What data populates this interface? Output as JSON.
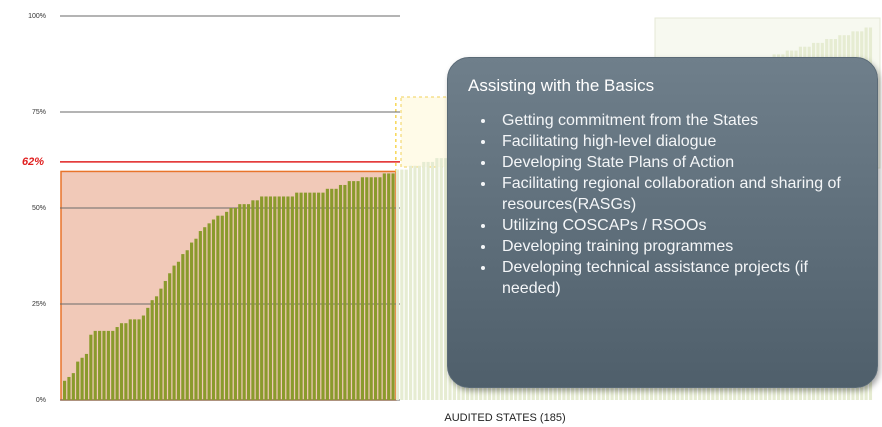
{
  "chart_data": {
    "type": "bar",
    "x_label": "AUDITED STATES (185)",
    "ylim": [
      0,
      100
    ],
    "yticks": [
      {
        "value": 0,
        "label": "0%"
      },
      {
        "value": 25,
        "label": "25%"
      },
      {
        "value": 50,
        "label": "50%"
      },
      {
        "value": 75,
        "label": "75%"
      },
      {
        "value": 100,
        "label": "100%"
      }
    ],
    "grid": true,
    "reference_line": {
      "value": 62,
      "label": "62%",
      "color": "#e02020"
    },
    "series": [
      {
        "color": "#8a9a2c",
        "values": [
          5,
          6,
          7,
          10,
          11,
          12,
          17,
          18,
          18,
          18,
          18,
          18,
          19,
          20,
          20,
          21,
          21,
          21,
          22,
          24,
          26,
          27,
          29,
          31,
          33,
          35,
          36,
          38,
          39,
          41,
          42,
          44,
          45,
          46,
          47,
          48,
          48,
          49,
          50,
          50,
          51,
          51,
          51,
          52,
          52,
          53,
          53,
          53,
          53,
          53,
          53,
          53,
          53,
          54,
          54,
          54,
          54,
          54,
          54,
          54,
          55,
          55,
          55,
          56,
          56,
          57,
          57,
          57,
          58,
          58,
          58,
          58,
          58,
          59,
          59,
          59
        ]
      },
      {
        "color": "#e6ecd2",
        "values": [
          60,
          60,
          60,
          61,
          61,
          61,
          62,
          62,
          62,
          63,
          63,
          63,
          64,
          64,
          64,
          65,
          65,
          65,
          66,
          66,
          66,
          67,
          67,
          67,
          68,
          68,
          68,
          69,
          69,
          69,
          70,
          70,
          70,
          71,
          71,
          71,
          72,
          72,
          72,
          73,
          73,
          73,
          74,
          74,
          74,
          75,
          75,
          75,
          76,
          76,
          76,
          77,
          77,
          77,
          78,
          78,
          78,
          80,
          80,
          81,
          81,
          81,
          82,
          82,
          82,
          83,
          83,
          83,
          84,
          84,
          84,
          85,
          85,
          85,
          86,
          86,
          86,
          87,
          87,
          87,
          88,
          88,
          88,
          89,
          89,
          89,
          90,
          90,
          90,
          91,
          91,
          91,
          92,
          92,
          92,
          93,
          93,
          93,
          94,
          94,
          94,
          95,
          95,
          95,
          96,
          96,
          96,
          97,
          97
        ]
      }
    ]
  },
  "callout": {
    "title": "Assisting with the Basics",
    "items": [
      "Getting commitment from the States",
      "Facilitating high-level dialogue",
      "Developing State Plans of Action",
      "Facilitating regional collaboration and sharing of resources(RASGs)",
      "Utilizing COSCAPs / RSOOs",
      "Developing training programmes",
      "Developing technical assistance projects (if needed)"
    ]
  }
}
